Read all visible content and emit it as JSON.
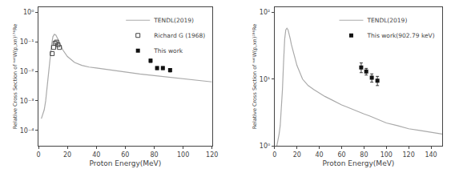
{
  "chart_data": [
    {
      "type": "line",
      "title": "",
      "xlabel": "Proton Energy(MeV)",
      "ylabel": "Relative Cross Section of ⁿᵃᵗW(p,xn)¹⁷⁶Re",
      "log": "y",
      "grid": false,
      "legend": "upper right",
      "xlim": [
        0,
        120
      ],
      "xticks": [
        0,
        20,
        40,
        60,
        80,
        100,
        120
      ],
      "ylim": [
        3e-05,
        1.5
      ],
      "yticks": [
        {
          "value": 0.0001,
          "label": "10⁻⁴"
        },
        {
          "value": 0.001,
          "label": "10⁻³"
        },
        {
          "value": 0.01,
          "label": "10⁻²"
        },
        {
          "value": 0.1,
          "label": "10⁻¹"
        },
        {
          "value": 1,
          "label": "10⁰"
        }
      ],
      "series": [
        {
          "name": "TENDL(2019)",
          "type": "line",
          "color": "#aaaaaa",
          "line_style": "solid",
          "x": [
            2,
            3,
            4,
            5,
            6,
            7,
            8,
            9,
            10,
            11,
            12,
            13,
            14,
            15,
            17,
            20,
            25,
            30,
            35,
            40,
            45,
            50,
            55,
            60,
            65,
            70,
            75,
            80,
            85,
            90,
            95,
            100,
            110,
            120
          ],
          "values": [
            0.00025,
            0.00035,
            0.0005,
            0.001,
            0.003,
            0.008,
            0.025,
            0.075,
            0.15,
            0.18,
            0.17,
            0.14,
            0.11,
            0.08,
            0.052,
            0.032,
            0.02,
            0.016,
            0.014,
            0.013,
            0.012,
            0.011,
            0.01,
            0.0095,
            0.0088,
            0.0082,
            0.0077,
            0.0072,
            0.0068,
            0.0063,
            0.0059,
            0.0056,
            0.005,
            0.0044
          ]
        },
        {
          "name": "Richard G (1968)",
          "type": "scatter",
          "color": "#444444",
          "marker": "square-open",
          "x": [
            9.5,
            10.5,
            11.5,
            12.5,
            13.5,
            14.5
          ],
          "values": [
            0.04,
            0.065,
            0.09,
            0.098,
            0.08,
            0.065
          ]
        },
        {
          "name": "This work",
          "type": "scatter",
          "color": "#111111",
          "marker": "square",
          "x": [
            77.5,
            82,
            86,
            91
          ],
          "values": [
            0.023,
            0.013,
            0.013,
            0.011
          ],
          "errors": [
            0.003,
            0.0015,
            0.0015,
            0.0015
          ]
        }
      ]
    },
    {
      "type": "line",
      "title": "",
      "xlabel": "Proton Energy(MeV)",
      "ylabel": "Relative Cross Section of ⁿᵃᵗW(p,xn)¹⁸⁶Re",
      "log": "y",
      "grid": false,
      "legend": "upper right",
      "xlim": [
        0,
        150
      ],
      "xticks": [
        0,
        20,
        40,
        60,
        80,
        100,
        120,
        140
      ],
      "ylim": [
        1.0,
        120
      ],
      "yticks": [
        {
          "value": 1,
          "label": "10⁰"
        },
        {
          "value": 10,
          "label": "10¹"
        },
        {
          "value": 100,
          "label": "10²"
        }
      ],
      "series": [
        {
          "name": "TENDL(2019)",
          "type": "line",
          "color": "#aaaaaa",
          "line_style": "solid",
          "x": [
            2,
            3,
            4,
            5,
            6,
            7,
            8,
            9,
            10,
            11,
            12,
            13,
            14,
            15,
            17,
            20,
            25,
            30,
            35,
            40,
            45,
            50,
            55,
            60,
            65,
            70,
            75,
            80,
            85,
            90,
            95,
            100,
            110,
            120,
            130,
            140,
            150
          ],
          "values": [
            1.0,
            1.2,
            1.5,
            2.0,
            3.5,
            7.0,
            18,
            40,
            55,
            58,
            55,
            48,
            40,
            33,
            24,
            16,
            10,
            8,
            7,
            6.2,
            5.5,
            5.0,
            4.5,
            4.1,
            3.8,
            3.5,
            3.2,
            3.0,
            2.8,
            2.6,
            2.4,
            2.2,
            2.0,
            1.8,
            1.7,
            1.6,
            1.5
          ]
        },
        {
          "name": "This work(902.79 keV)",
          "type": "scatter",
          "color": "#111111",
          "marker": "square",
          "x": [
            77.5,
            82,
            87,
            92
          ],
          "values": [
            15.0,
            13.0,
            10.5,
            9.5
          ],
          "errors": [
            2.5,
            1.5,
            1.5,
            1.5
          ]
        }
      ]
    }
  ]
}
